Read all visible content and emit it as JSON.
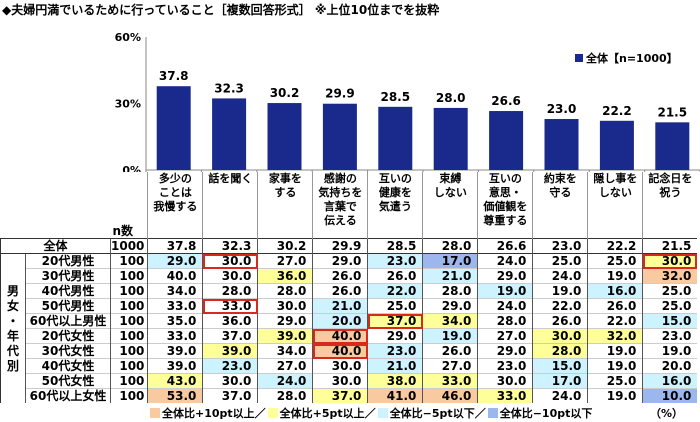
{
  "title": "◆夫婦円満でいるために行っていること［複数回答形式］",
  "subtitle": "※上位10位までを抜粋",
  "chart_data": {
    "type": "bar",
    "categories": [
      "多少の\nことは\n我慢する",
      "話を聞く",
      "家事を\nする",
      "感謝の\n気持ちを\n言葉で\n伝える",
      "互いの\n健康を\n気遣う",
      "束縛\nしない",
      "互いの\n意思・\n価値観を\n尊重する",
      "約束を\n守る",
      "隠し事を\nしない",
      "記念日を\n祝う"
    ],
    "series": [
      {
        "name": "全体【n=1000】",
        "values": [
          37.8,
          32.3,
          30.2,
          29.9,
          28.5,
          28.0,
          26.6,
          23.0,
          22.2,
          21.5
        ]
      }
    ],
    "ylim": [
      0,
      60
    ],
    "yticks": [
      "0%",
      "30%",
      "60%"
    ],
    "bar_color": "#1a2a8c",
    "grid": false,
    "legend": "top-right"
  },
  "table": {
    "n_header": "n数",
    "group_label": "男\n女\n・\n年\n代\n別",
    "rows": [
      {
        "label": "全体",
        "n": "1000",
        "values": [
          "37.8",
          "32.3",
          "30.2",
          "29.9",
          "28.5",
          "28.0",
          "26.6",
          "23.0",
          "22.2",
          "21.5"
        ]
      },
      {
        "label": "20代男性",
        "n": "100",
        "values": [
          "29.0",
          "30.0",
          "27.0",
          "29.0",
          "23.0",
          "17.0",
          "24.0",
          "25.0",
          "25.0",
          "30.0"
        ],
        "boxed": [
          1,
          9
        ]
      },
      {
        "label": "30代男性",
        "n": "100",
        "values": [
          "40.0",
          "30.0",
          "36.0",
          "26.0",
          "26.0",
          "21.0",
          "29.0",
          "24.0",
          "19.0",
          "32.0"
        ]
      },
      {
        "label": "40代男性",
        "n": "100",
        "values": [
          "34.0",
          "28.0",
          "28.0",
          "26.0",
          "22.0",
          "28.0",
          "19.0",
          "19.0",
          "16.0",
          "25.0"
        ]
      },
      {
        "label": "50代男性",
        "n": "100",
        "values": [
          "33.0",
          "33.0",
          "30.0",
          "21.0",
          "25.0",
          "29.0",
          "24.0",
          "22.0",
          "26.0",
          "25.0"
        ],
        "boxed": [
          1
        ]
      },
      {
        "label": "60代以上男性",
        "n": "100",
        "values": [
          "35.0",
          "36.0",
          "29.0",
          "20.0",
          "37.0",
          "34.0",
          "28.0",
          "26.0",
          "22.0",
          "15.0"
        ],
        "boxed": [
          4
        ]
      },
      {
        "label": "20代女性",
        "n": "100",
        "values": [
          "33.0",
          "37.0",
          "39.0",
          "40.0",
          "29.0",
          "19.0",
          "27.0",
          "30.0",
          "32.0",
          "23.0"
        ],
        "boxed": [
          3
        ]
      },
      {
        "label": "30代女性",
        "n": "100",
        "values": [
          "39.0",
          "39.0",
          "34.0",
          "40.0",
          "23.0",
          "26.0",
          "29.0",
          "28.0",
          "19.0",
          "19.0"
        ],
        "boxed": [
          3
        ]
      },
      {
        "label": "40代女性",
        "n": "100",
        "values": [
          "39.0",
          "23.0",
          "27.0",
          "30.0",
          "21.0",
          "27.0",
          "23.0",
          "15.0",
          "19.0",
          "20.0"
        ]
      },
      {
        "label": "50代女性",
        "n": "100",
        "values": [
          "43.0",
          "30.0",
          "24.0",
          "30.0",
          "38.0",
          "33.0",
          "30.0",
          "17.0",
          "25.0",
          "16.0"
        ]
      },
      {
        "label": "60代以上女性",
        "n": "100",
        "values": [
          "53.0",
          "37.0",
          "28.0",
          "37.0",
          "41.0",
          "46.0",
          "33.0",
          "24.0",
          "19.0",
          "10.0"
        ]
      }
    ]
  },
  "legend_items": [
    {
      "label": "全体比+10pt以上／",
      "color": "#f9c9a0"
    },
    {
      "label": "全体比+5pt以上／",
      "color": "#ffff99"
    },
    {
      "label": "全体比−5pt以下／",
      "color": "#ccf3ff"
    },
    {
      "label": "全体比−10pt以下",
      "color": "#9bb7ee"
    }
  ],
  "unit": "（%）"
}
